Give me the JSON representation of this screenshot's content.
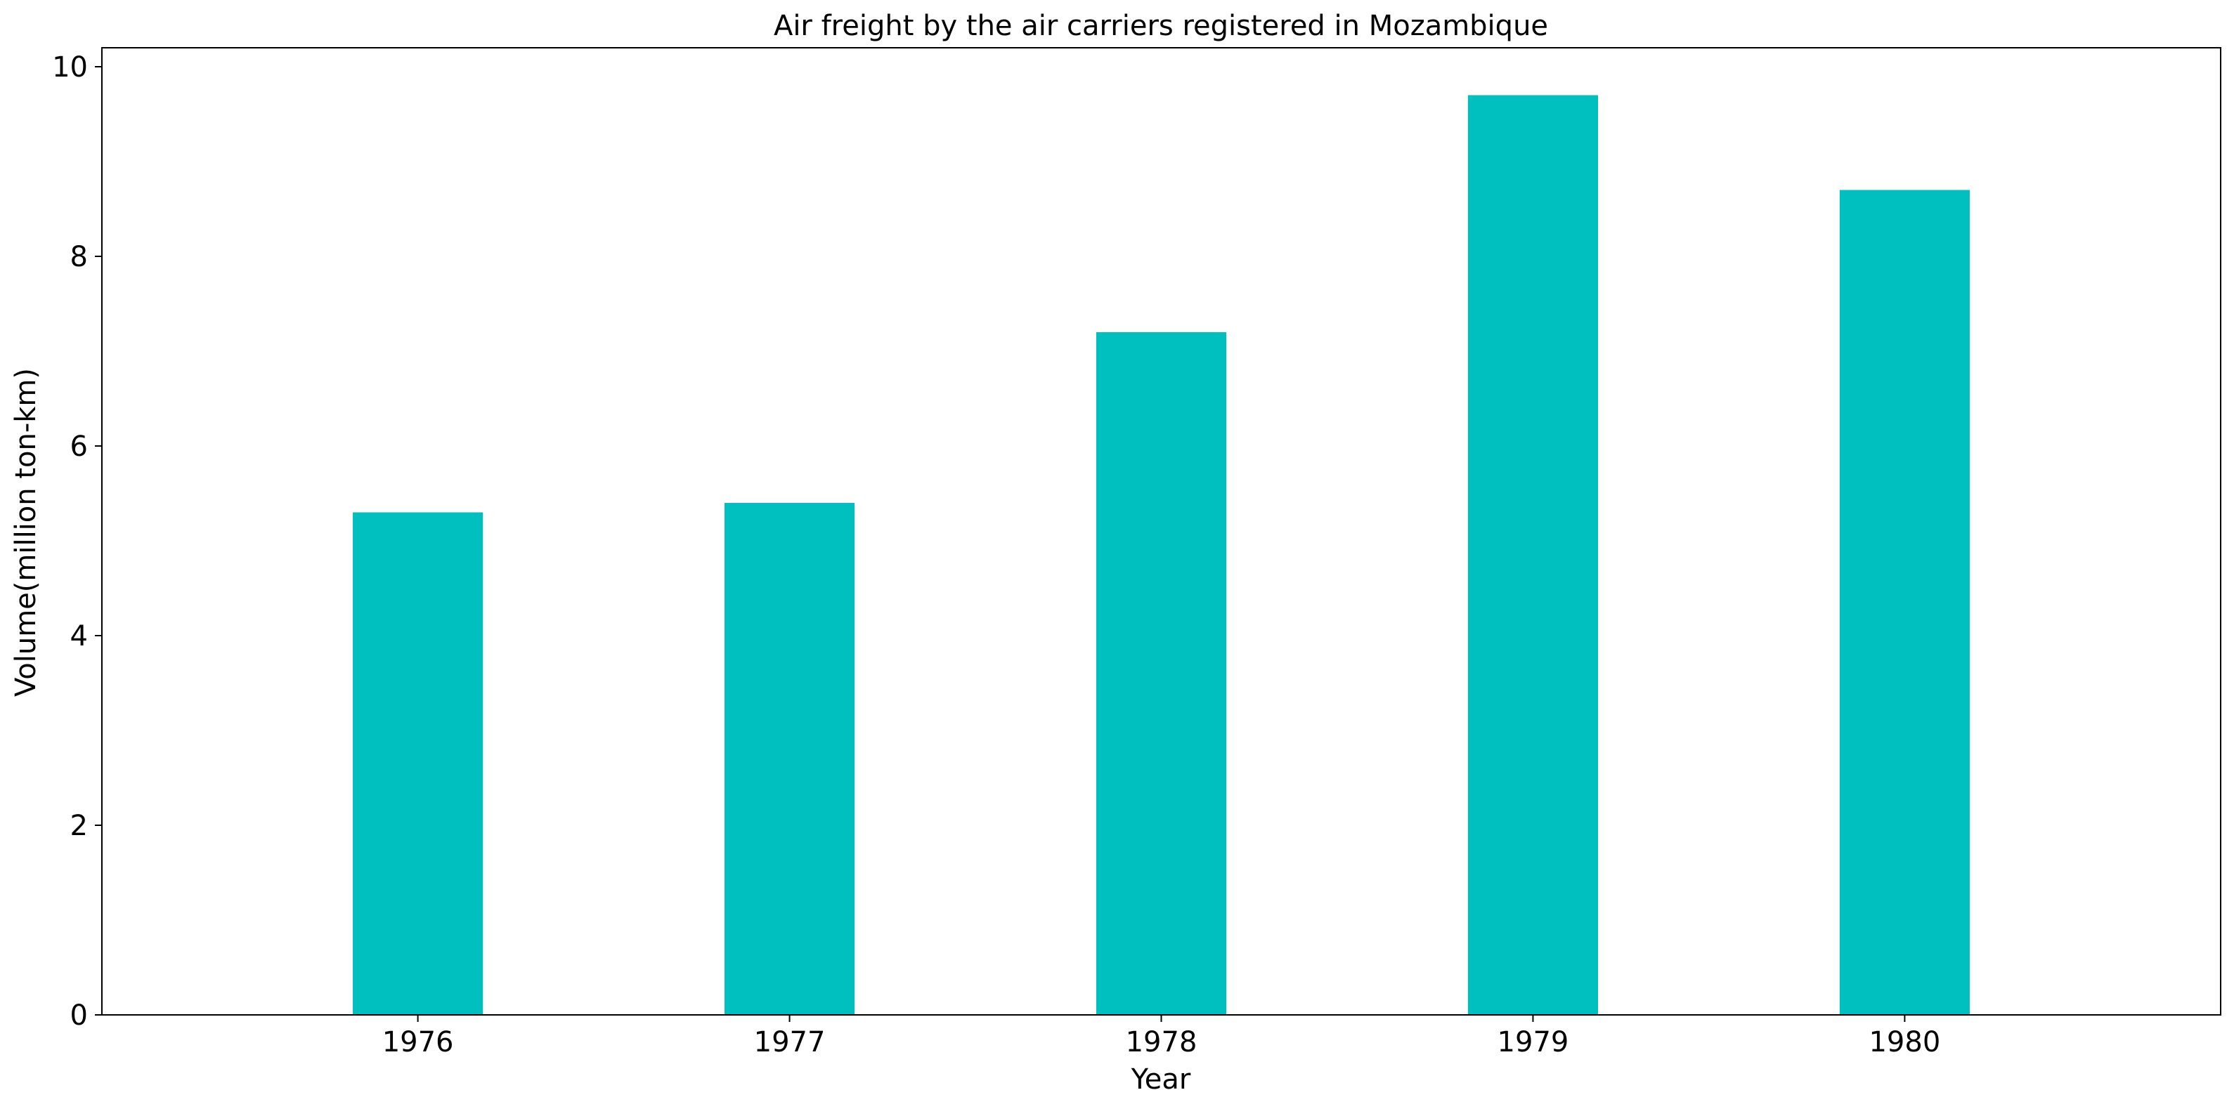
{
  "chart_data": {
    "type": "bar",
    "title": "Air freight by the air carriers registered in Mozambique",
    "xlabel": "Year",
    "ylabel": "Volume(million ton-km)",
    "categories": [
      "1976",
      "1977",
      "1978",
      "1979",
      "1980"
    ],
    "values": [
      5.3,
      5.4,
      7.2,
      9.7,
      8.7
    ],
    "ylim": [
      0,
      10.2
    ],
    "yticks": [
      0,
      2,
      4,
      6,
      8,
      10
    ],
    "grid": false,
    "legend": "none",
    "bar_color": "#00BFBF"
  }
}
